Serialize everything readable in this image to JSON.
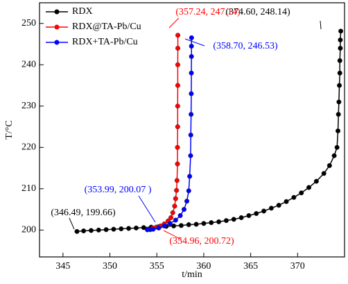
{
  "chart_data": {
    "type": "line",
    "x_label": "t/min",
    "y_label": "T/°C",
    "xlim": [
      342.5,
      375
    ],
    "ylim": [
      193.5,
      255
    ],
    "xticks": [
      345,
      350,
      355,
      360,
      365,
      370
    ],
    "yticks": [
      200,
      210,
      220,
      230,
      240,
      250
    ],
    "legend": "upper left",
    "series": [
      {
        "name": "RDX",
        "color": "#000000",
        "x": [
          346.49,
          347.2,
          348,
          348.8,
          349.6,
          350.4,
          351.2,
          352,
          352.8,
          353.6,
          354.4,
          355.2,
          356,
          356.8,
          357.6,
          358.4,
          359.2,
          360,
          360.8,
          361.6,
          362.4,
          363.2,
          364,
          364.8,
          365.6,
          366.4,
          367.2,
          368,
          368.8,
          369.6,
          370.4,
          371.2,
          372,
          372.8,
          373.4,
          373.9,
          374.2,
          374.3,
          374.35,
          374.4,
          374.45,
          374.5,
          374.5,
          374.55,
          374.55,
          374.6
        ],
        "values": [
          199.66,
          199.8,
          199.9,
          200.0,
          200.1,
          200.2,
          200.3,
          200.4,
          200.5,
          200.6,
          200.7,
          200.8,
          200.9,
          201.0,
          201.1,
          201.3,
          201.4,
          201.6,
          201.8,
          202.0,
          202.3,
          202.6,
          203.0,
          203.5,
          204.0,
          204.6,
          205.3,
          206.0,
          206.9,
          207.9,
          209.0,
          210.3,
          211.8,
          213.7,
          215.6,
          218.0,
          220.0,
          224,
          228,
          231,
          235,
          238,
          241,
          244,
          246,
          248.14
        ]
      },
      {
        "name": "RDX@TA-Pb/Cu",
        "color": "#ff0000",
        "x": [
          354.6,
          354.96,
          355.4,
          355.8,
          356.2,
          356.5,
          356.7,
          356.9,
          357.0,
          357.1,
          357.15,
          357.2,
          357.2,
          357.22,
          357.22,
          357.23,
          357.23,
          357.24,
          357.24
        ],
        "values": [
          200.5,
          200.72,
          201.0,
          201.5,
          202.2,
          203.0,
          204.2,
          205.8,
          207.6,
          209.6,
          212,
          216,
          220,
          225,
          230,
          235,
          240,
          244,
          247.14
        ]
      },
      {
        "name": "RDX+TA-Pb/Cu",
        "color": "#0000ff",
        "x": [
          353.99,
          354.3,
          354.6,
          355.2,
          355.8,
          356.4,
          357,
          357.5,
          357.9,
          358.2,
          358.4,
          358.5,
          358.6,
          358.62,
          358.65,
          358.67,
          358.68,
          358.69,
          358.69,
          358.7
        ],
        "values": [
          200.07,
          200.1,
          200.2,
          200.5,
          201.0,
          201.6,
          202.4,
          203.5,
          205,
          207,
          209.5,
          213,
          218,
          223,
          228,
          233,
          238,
          242,
          244.5,
          246.53
        ]
      }
    ],
    "annotations": [
      {
        "text": "(374.60, 248.14)",
        "color": "#000000"
      },
      {
        "text": "(357.24, 247.14)",
        "color": "#ff0000"
      },
      {
        "text": "(358.70, 246.53)",
        "color": "#0000ff"
      },
      {
        "text": "(353.99, 200.07 )",
        "color": "#0000ff"
      },
      {
        "text": "(346.49, 199.66)",
        "color": "#000000"
      },
      {
        "text": "(354.96, 200.72)",
        "color": "#ff0000"
      }
    ]
  }
}
